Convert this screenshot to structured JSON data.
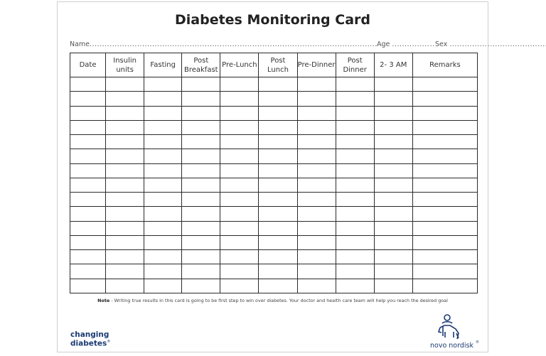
{
  "card": {
    "title": "Diabetes Monitoring Card",
    "fields": {
      "name_label": "Name",
      "name_dots": "..............................................................................................................................................................................................",
      "age_label": "Age",
      "age_dots": "...............",
      "sex_label": "Sex",
      "sex_dots": "..............."
    },
    "table": {
      "columns": [
        "Date",
        "Insulin\nunits",
        "Fasting",
        "Post\nBreakfast",
        "Pre-Lunch",
        "Post\nLunch",
        "Pre-Dinner",
        "Post\nDinner",
        "2- 3 AM",
        "Remarks"
      ],
      "row_count": 15
    },
    "note": {
      "label": "Note",
      "text": " - Writing true results in this card is going to be first step to win over diabetes. Your doctor and health care team will help you reach the desired goal"
    },
    "brand_left": {
      "line1": "changing",
      "line2": "diabetes",
      "mark": "®"
    },
    "brand_right": {
      "name": "novo nordisk",
      "mark": "®",
      "icon": "apis-bull-logo-icon"
    }
  },
  "colors": {
    "brand_blue": "#1a3a73",
    "grid": "#2a2a2a"
  }
}
